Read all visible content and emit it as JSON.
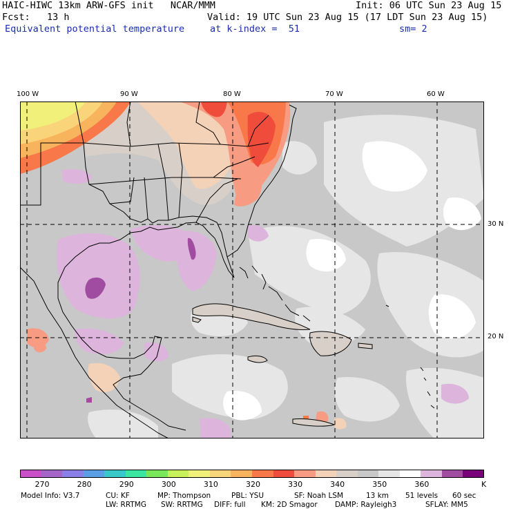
{
  "header": {
    "title": "HAIC-HIWC 13km ARW-GFS init   NCAR/MMM",
    "init": "Init: 06 UTC Sun 23 Aug 15",
    "fcst": "Fcst:   13 h",
    "valid": "Valid: 19 UTC Sun 23 Aug 15 (17 LDT Sun 23 Aug 15)",
    "field": "Equivalent potential temperature",
    "level": "at k-index =  51",
    "smooth": "sm= 2"
  },
  "longitude_labels": [
    "100 W",
    "90 W",
    "80 W",
    "70 W",
    "60 W"
  ],
  "latitude_labels": [
    "30 N",
    "20 N"
  ],
  "colorbar": {
    "colors": [
      "#c84fc8",
      "#a366c8",
      "#8a7fe6",
      "#5a9ee6",
      "#38c8c8",
      "#3ae6a0",
      "#7ae65a",
      "#c8f05a",
      "#f0f07a",
      "#fad47a",
      "#f8b45c",
      "#f8784a",
      "#f04c3c",
      "#f79c82",
      "#f4d2b8",
      "#d8d0c8",
      "#c8c8c8",
      "#e6e6e6",
      "#ffffff",
      "#dcb4dc",
      "#a04ca0",
      "#780078"
    ],
    "labels": [
      "270",
      "280",
      "290",
      "300",
      "310",
      "320",
      "330",
      "340",
      "350",
      "360",
      "K"
    ]
  },
  "model_info": {
    "line1": [
      "Model Info: V3.7",
      "CU: KF",
      "MP: Thompson",
      "PBL: YSU",
      "SF: Noah LSM",
      "13 km",
      "51 levels",
      "60 sec"
    ],
    "line2": [
      "LW: RRTMG",
      "SW: RRTMG",
      "DIFF: full",
      "KM: 2D Smagor",
      "DAMP: Rayleigh3",
      "SFLAY: MM5"
    ]
  }
}
